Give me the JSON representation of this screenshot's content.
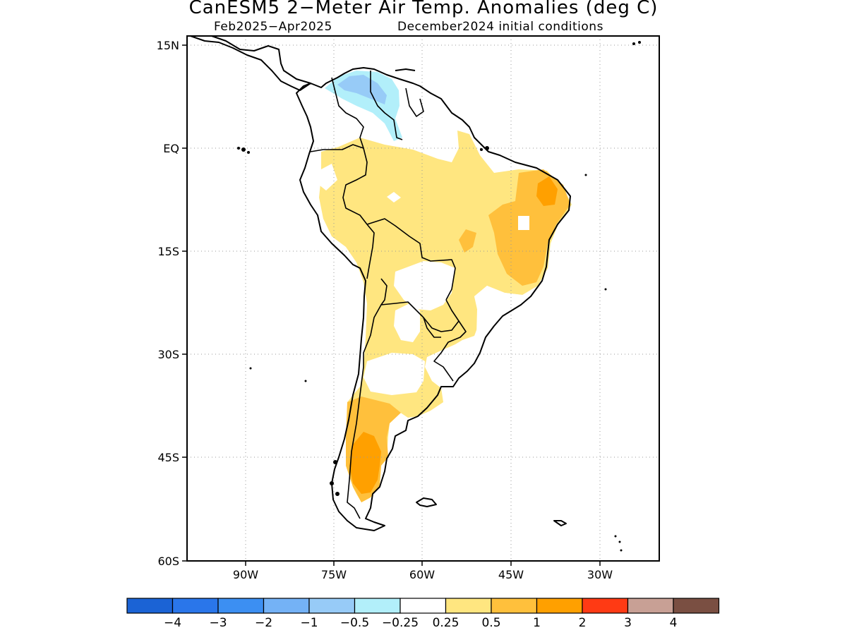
{
  "title": "CanESM5 2−Meter Air Temp. Anomalies (deg C)",
  "subtitle_left": "Feb2025−Apr2025",
  "subtitle_right": "December2024 initial conditions",
  "map": {
    "lon_range": [
      -97,
      -17
    ],
    "lat_range": [
      -60,
      15
    ],
    "lat_ticks": [
      {
        "lat": 15,
        "label": "15N"
      },
      {
        "lat": 0,
        "label": "EQ"
      },
      {
        "lat": -15,
        "label": "15S"
      },
      {
        "lat": -30,
        "label": "30S"
      },
      {
        "lat": -45,
        "label": "45S"
      },
      {
        "lat": -60,
        "label": "60S"
      }
    ],
    "lon_ticks": [
      {
        "lon": -90,
        "label": "90W"
      },
      {
        "lon": -75,
        "label": "75W"
      },
      {
        "lon": -60,
        "label": "60W"
      },
      {
        "lon": -45,
        "label": "45W"
      },
      {
        "lon": -30,
        "label": "30W"
      }
    ],
    "grid": "dotted",
    "regions": [
      {
        "name": "Northern Venezuela/Colombia cool anomaly",
        "value": -0.5,
        "center": [
          -67,
          9
        ]
      },
      {
        "name": "Amazon basin warm anomaly",
        "value": 0.5,
        "center": [
          -58,
          -5
        ]
      },
      {
        "name": "Northeast Brazil warm anomaly",
        "value": 1,
        "center": [
          -42,
          -9
        ]
      },
      {
        "name": "Northeast Brazil peak",
        "value": 2,
        "center": [
          -40,
          -6
        ]
      },
      {
        "name": "Central Argentina warm anomaly",
        "value": 0.5,
        "center": [
          -65,
          -30
        ]
      },
      {
        "name": "Patagonia warm anomaly",
        "value": 1,
        "center": [
          -69,
          -42
        ]
      },
      {
        "name": "Southern Patagonia peak",
        "value": 2,
        "center": [
          -71,
          -47
        ]
      }
    ]
  },
  "colorbar": {
    "colors": [
      "#1b63d5",
      "#2a76ea",
      "#3c8ff2",
      "#74b2f6",
      "#97cbf7",
      "#b2effa",
      "#ffffff",
      "#ffe680",
      "#ffc03c",
      "#ffa000",
      "#ff3a14",
      "#c8a095",
      "#7a4f42"
    ],
    "labels": [
      "−4",
      "−3",
      "−2",
      "−1",
      "−0.5",
      "−0.25",
      "0.25",
      "0.5",
      "1",
      "2",
      "3",
      "4"
    ]
  },
  "colors": {
    "cool1": "#97cbf7",
    "cool2": "#b2effa",
    "warm05": "#ffe680",
    "warm1": "#ffc03c",
    "warm2": "#ffa000"
  }
}
